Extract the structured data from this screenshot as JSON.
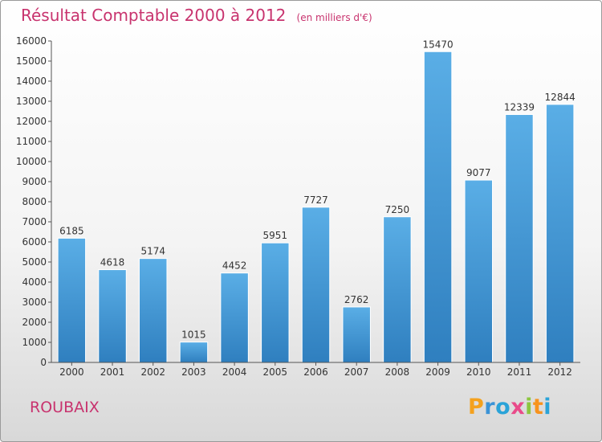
{
  "brand": {
    "letters": [
      "P",
      "r",
      "o",
      "x",
      "i",
      "t",
      "i"
    ],
    "colors": [
      "#f4a11d",
      "#3b93d6",
      "#2aa3d8",
      "#e94b8a",
      "#8cc63f",
      "#f7931e",
      "#2aa3d8"
    ]
  },
  "city": "ROUBAIX",
  "chart_data": {
    "type": "bar",
    "title": "Résultat Comptable 2000 à 2012",
    "subtitle": "(en milliers d'€)",
    "xlabel": "",
    "ylabel": "",
    "categories": [
      "2000",
      "2001",
      "2002",
      "2003",
      "2004",
      "2005",
      "2006",
      "2007",
      "2008",
      "2009",
      "2010",
      "2011",
      "2012"
    ],
    "values": [
      6185,
      4618,
      5174,
      1015,
      4452,
      5951,
      7727,
      2762,
      7250,
      15470,
      9077,
      12339,
      12844
    ],
    "ylim": [
      0,
      16000
    ],
    "yticks": [
      0,
      1000,
      2000,
      3000,
      4000,
      5000,
      6000,
      7000,
      8000,
      9000,
      10000,
      11000,
      12000,
      13000,
      14000,
      15000,
      16000
    ],
    "grid": false,
    "bar_color": "#4f9fd9"
  }
}
